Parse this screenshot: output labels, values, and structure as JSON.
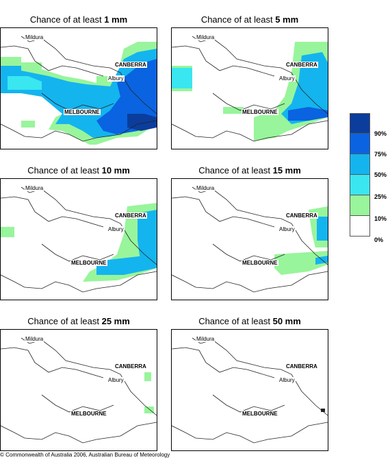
{
  "panels": [
    {
      "prefix": "Chance of at least ",
      "amount": "1 mm"
    },
    {
      "prefix": "Chance of at least ",
      "amount": "5 mm"
    },
    {
      "prefix": "Chance of at least ",
      "amount": "10 mm"
    },
    {
      "prefix": "Chance of at least ",
      "amount": "15 mm"
    },
    {
      "prefix": "Chance of at least ",
      "amount": "25 mm"
    },
    {
      "prefix": "Chance of at least ",
      "amount": "50 mm"
    }
  ],
  "places": {
    "mildura": "Mildura",
    "canberra": "CANBERRA",
    "albury": "Albury",
    "melbourne": "MELBOURNE"
  },
  "legend": {
    "labels": [
      "90%",
      "75%",
      "50%",
      "25%",
      "10%",
      "0%"
    ],
    "colors": [
      "#0b3d9c",
      "#0a63e0",
      "#14b4ef",
      "#3ae6f0",
      "#98f59b",
      "#ffffff"
    ]
  },
  "copyright": "© Commonwealth of Australia 2006, Australian Bureau of Meteorology"
}
